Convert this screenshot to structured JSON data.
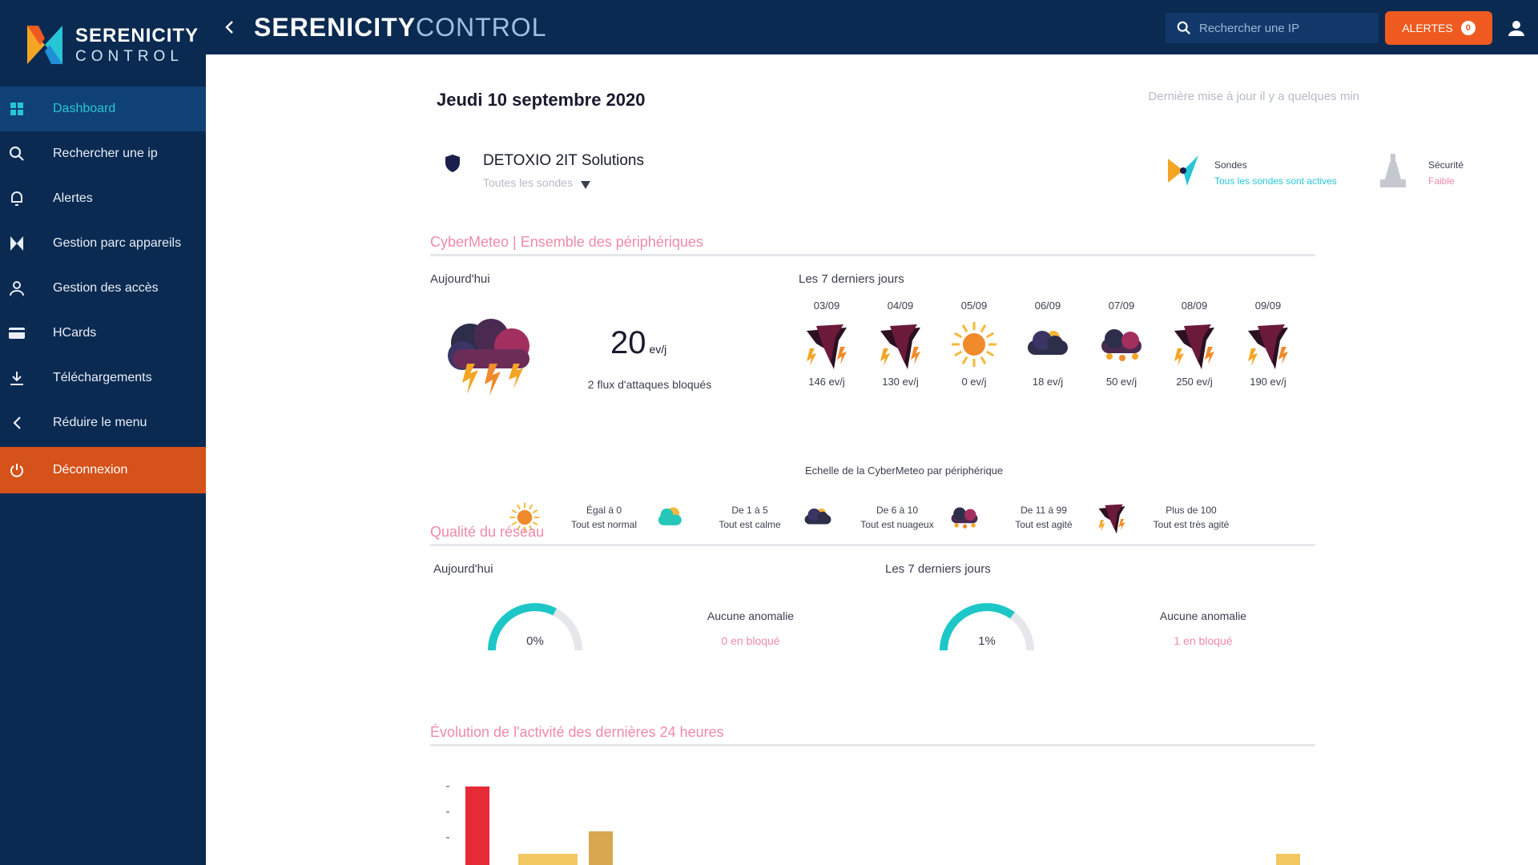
{
  "app": {
    "logo_line1": "SERENICITY",
    "logo_line2": "CONTROL",
    "title_bold": "SERENICITY",
    "title_light": "CONTROL"
  },
  "sidebar": {
    "items": [
      {
        "label": "Dashboard",
        "icon": "grid-icon",
        "active": true
      },
      {
        "label": "Rechercher une ip",
        "icon": "search-icon"
      },
      {
        "label": "Alertes",
        "icon": "bell-icon"
      },
      {
        "label": "Gestion parc appareils",
        "icon": "devices-icon"
      },
      {
        "label": "Gestion des accès",
        "icon": "access-icon"
      },
      {
        "label": "HCards",
        "icon": "card-icon"
      },
      {
        "label": "Téléchargements",
        "icon": "download-icon"
      },
      {
        "label": "Réduire le menu",
        "icon": "chevron-left-icon"
      },
      {
        "label": "Déconnexion",
        "icon": "power-icon"
      }
    ]
  },
  "topbar": {
    "search_placeholder": "Rechercher une IP",
    "alert_label": "ALERTES",
    "alert_count": "0"
  },
  "dashboard": {
    "date": "Jeudi 10 septembre 2020",
    "updated": "Dernière mise à jour il y a quelques min",
    "org_name": "DETOXIO 2IT Solutions",
    "org_sub": "Toutes les sondes",
    "status1_label": "Sondes",
    "status1_value": "Tous les sondes sont actives",
    "status2_label": "Sécurité",
    "status2_value": "Faible"
  },
  "section1": {
    "title": "CyberMeteo | Ensemble des périphériques",
    "today_label": "Aujourd'hui",
    "today_value": "20",
    "today_unit": "ev/j",
    "today_note": "2 flux d'attaques bloqués",
    "week_label": "Les 7 derniers jours",
    "days": [
      {
        "date": "03/09",
        "value": "146 ev/j",
        "icon": "storm-icon"
      },
      {
        "date": "04/09",
        "value": "130 ev/j",
        "icon": "storm-icon"
      },
      {
        "date": "05/09",
        "value": "0 ev/j",
        "icon": "sun-icon"
      },
      {
        "date": "06/09",
        "value": "18 ev/j",
        "icon": "cloud-icon"
      },
      {
        "date": "07/09",
        "value": "50 ev/j",
        "icon": "rain-icon"
      },
      {
        "date": "08/09",
        "value": "250 ev/j",
        "icon": "storm-icon"
      },
      {
        "date": "09/09",
        "value": "190 ev/j",
        "icon": "storm-icon"
      }
    ],
    "legend_title": "Echelle de la CyberMeteo par périphérique",
    "legend": [
      {
        "line1": "Égal à 0",
        "line2": "Tout est normal",
        "icon": "sun-icon"
      },
      {
        "line1": "De 1 à 5",
        "line2": "Tout est calme",
        "icon": "cloud-sun-icon"
      },
      {
        "line1": "De 6 à 10",
        "line2": "Tout est nuageux",
        "icon": "cloud-icon"
      },
      {
        "line1": "De 11 à 99",
        "line2": "Tout est agité",
        "icon": "rain-icon"
      },
      {
        "line1": "Plus de 100",
        "line2": "Tout est très agité",
        "icon": "storm-icon"
      }
    ]
  },
  "section2": {
    "title": "Qualité du réseau",
    "today_label": "Aujourd'hui",
    "week_label": "Les 7 derniers jours",
    "gauge_today_value": "0%",
    "gauge_today_level": 0.65,
    "gauge_today_note1": "Aucune anomalie",
    "gauge_today_note2": "0 en bloqué",
    "gauge_week_value": "1%",
    "gauge_week_level": 0.7,
    "gauge_week_note1": "Aucune anomalie",
    "gauge_week_note2": "1 en bloqué"
  },
  "section3": {
    "title": "Évolution de l'activité des dernières 24 heures"
  },
  "chart_data": {
    "type": "bar",
    "values": [
      7,
      0,
      0,
      1,
      1,
      1,
      0,
      3,
      0,
      0,
      0,
      0,
      0,
      0,
      0,
      0,
      0,
      0,
      0,
      0,
      0,
      0,
      0,
      0,
      0,
      0,
      0,
      0,
      0,
      0,
      0,
      0,
      0,
      0,
      0,
      0,
      0,
      0,
      0,
      0,
      0,
      0,
      0,
      0,
      0,
      0,
      1
    ],
    "colors": {
      "high": "#e62a36",
      "mid": "#d9a84e",
      "low": "#f3c862"
    },
    "ylim": [
      0,
      7
    ]
  },
  "colors": {
    "sidebar_bg": "#0b2a52",
    "accent_cyan": "#26c6d8",
    "accent_orange": "#ee5a1f",
    "accent_pink": "#f08aa8"
  }
}
